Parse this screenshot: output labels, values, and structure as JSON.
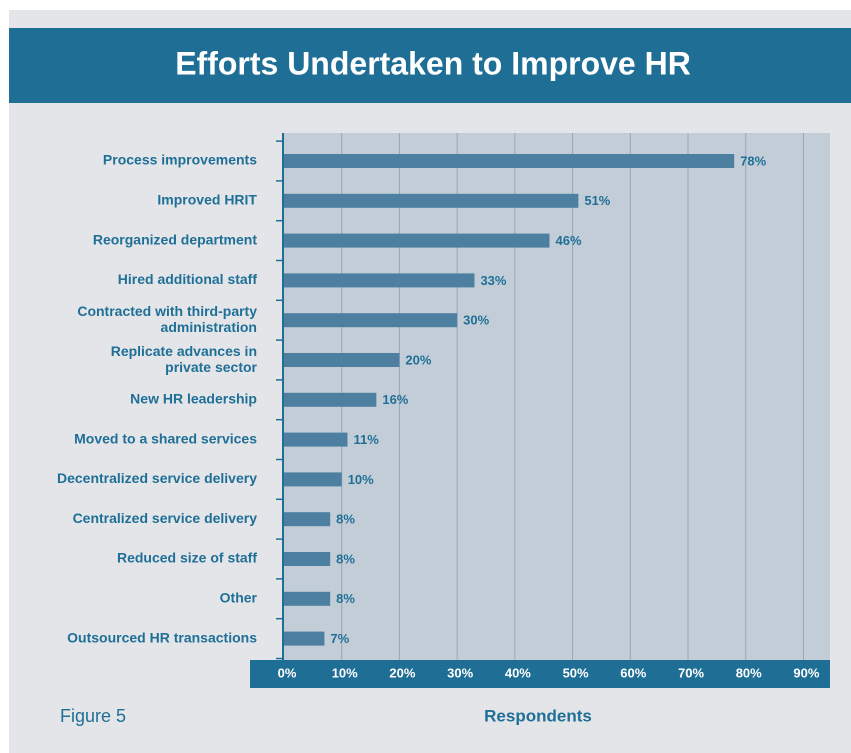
{
  "chart_data": {
    "type": "hbar",
    "title": "Efforts Undertaken to Improve HR",
    "caption": "Figure 5",
    "xlabel": "Respondents",
    "categories": [
      "Process improvements",
      "Improved HRIT",
      "Reorganized department",
      "Hired additional staff",
      "Contracted with third-party\nadministration",
      "Replicate advances in\nprivate sector",
      "New HR leadership",
      "Moved to a shared services",
      "Decentralized service delivery",
      "Centralized service delivery",
      "Reduced size of staff",
      "Other",
      "Outsourced HR transactions"
    ],
    "values": [
      78,
      51,
      46,
      33,
      30,
      20,
      16,
      11,
      10,
      8,
      8,
      8,
      7
    ],
    "value_labels": [
      "78%",
      "51%",
      "46%",
      "33%",
      "30%",
      "20%",
      "16%",
      "11%",
      "10%",
      "8%",
      "8%",
      "8%",
      "7%"
    ],
    "color": "#4d7fa1",
    "xlim": [
      0,
      94.6
    ],
    "xticks": [
      {
        "value": 0,
        "label": "0%"
      },
      {
        "value": 10,
        "label": "10%"
      },
      {
        "value": 20,
        "label": "20%"
      },
      {
        "value": 30,
        "label": "30%"
      },
      {
        "value": 40,
        "label": "40%"
      },
      {
        "value": 50,
        "label": "50%"
      },
      {
        "value": 60,
        "label": "60%"
      },
      {
        "value": 70,
        "label": "70%"
      },
      {
        "value": 80,
        "label": "80%"
      },
      {
        "value": 90,
        "label": "90%"
      }
    ],
    "grid": true
  }
}
